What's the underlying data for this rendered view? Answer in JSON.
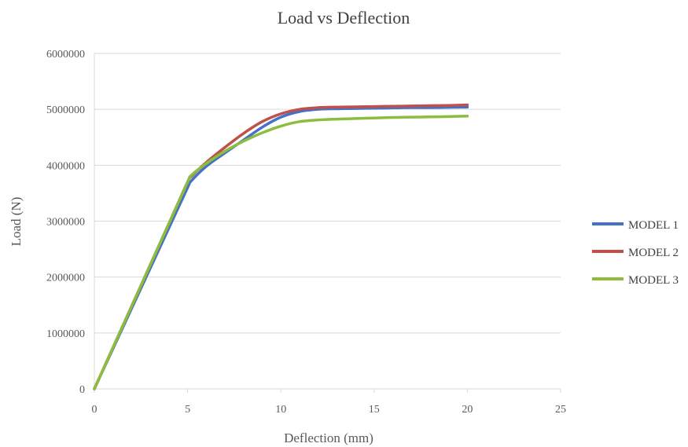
{
  "chart_data": {
    "type": "line",
    "title": "Load vs Deflection",
    "xlabel": "Deflection (mm)",
    "ylabel": "Load (N)",
    "xlim": [
      0,
      25
    ],
    "ylim": [
      0,
      6000000
    ],
    "x_ticks": [
      "0",
      "5",
      "10",
      "15",
      "20",
      "25"
    ],
    "y_ticks": [
      "0",
      "1000000",
      "2000000",
      "3000000",
      "4000000",
      "5000000",
      "6000000"
    ],
    "grid": "horizontal",
    "legend_position": "right",
    "series": [
      {
        "name": "MODEL 1",
        "color": "#4472C4",
        "x": [
          0,
          1,
          2,
          3,
          4,
          5,
          5.2,
          6,
          7,
          8,
          9,
          10,
          11,
          12,
          13,
          14,
          15,
          16,
          17,
          18,
          19,
          20
        ],
        "y": [
          0,
          720000,
          1440000,
          2160000,
          2880000,
          3600000,
          3720000,
          3980000,
          4220000,
          4450000,
          4680000,
          4860000,
          4960000,
          5000000,
          5010000,
          5015000,
          5020000,
          5025000,
          5030000,
          5030000,
          5035000,
          5040000
        ]
      },
      {
        "name": "MODEL 2",
        "color": "#C0504D",
        "x": [
          0,
          1,
          2,
          3,
          4,
          5,
          5.2,
          6,
          7,
          8,
          9,
          10,
          11,
          12,
          13,
          14,
          15,
          16,
          17,
          18,
          19,
          20
        ],
        "y": [
          0,
          740000,
          1480000,
          2220000,
          2960000,
          3700000,
          3800000,
          4050000,
          4320000,
          4570000,
          4780000,
          4920000,
          5000000,
          5030000,
          5040000,
          5045000,
          5050000,
          5055000,
          5060000,
          5065000,
          5070000,
          5080000
        ]
      },
      {
        "name": "MODEL 3",
        "color": "#8CBD3F",
        "x": [
          0,
          1,
          2,
          3,
          4,
          5,
          5.2,
          6,
          7,
          8,
          9,
          10,
          11,
          12,
          13,
          14,
          15,
          16,
          17,
          18,
          19,
          20
        ],
        "y": [
          0,
          740000,
          1480000,
          2220000,
          2960000,
          3700000,
          3820000,
          4030000,
          4250000,
          4430000,
          4580000,
          4700000,
          4780000,
          4810000,
          4825000,
          4835000,
          4845000,
          4855000,
          4860000,
          4865000,
          4870000,
          4880000
        ]
      }
    ]
  }
}
